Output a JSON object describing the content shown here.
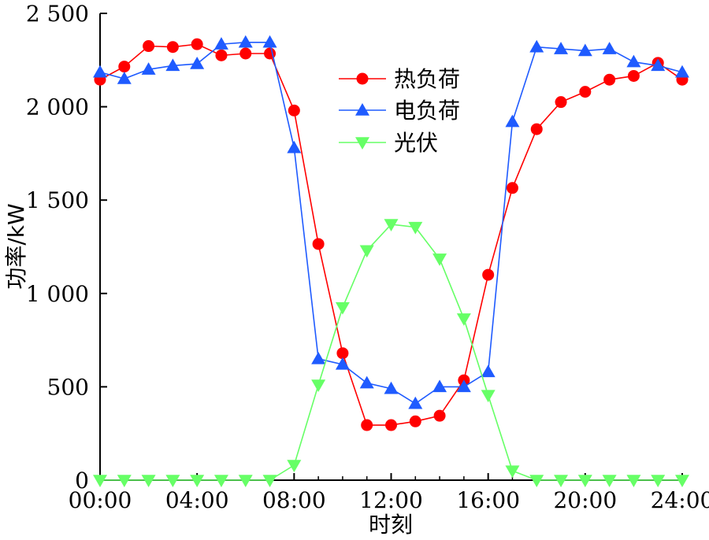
{
  "chart_data": {
    "type": "line",
    "xlabel": "时刻",
    "ylabel": "功率/kW",
    "x_tick_labels": [
      "00:00",
      "04:00",
      "08:00",
      "12:00",
      "16:00",
      "20:00",
      "24:00"
    ],
    "y_tick_labels": [
      "0",
      "500",
      "1 000",
      "1 500",
      "2 000",
      "2 500"
    ],
    "xlim": [
      0,
      24
    ],
    "ylim": [
      0,
      2500
    ],
    "grid": false,
    "legend_position": "top-center",
    "x": [
      0,
      1,
      2,
      3,
      4,
      5,
      6,
      7,
      8,
      9,
      10,
      11,
      12,
      13,
      14,
      15,
      16,
      17,
      18,
      19,
      20,
      21,
      22,
      23,
      24
    ],
    "series": [
      {
        "name": "热负荷",
        "marker": "circle",
        "color": "#ff0000",
        "values": [
          2145,
          2215,
          2325,
          2320,
          2335,
          2275,
          2285,
          2285,
          1980,
          1265,
          680,
          295,
          295,
          315,
          345,
          535,
          1100,
          1565,
          1880,
          2025,
          2080,
          2145,
          2165,
          2235,
          2145
        ]
      },
      {
        "name": "电负荷",
        "marker": "triangle-up",
        "color": "#1f5bff",
        "values": [
          2185,
          2150,
          2200,
          2220,
          2230,
          2335,
          2345,
          2345,
          1780,
          650,
          620,
          520,
          490,
          410,
          500,
          500,
          580,
          1920,
          2320,
          2310,
          2300,
          2310,
          2240,
          2220,
          2185
        ]
      },
      {
        "name": "光伏",
        "marker": "triangle-down",
        "color": "#66ff66",
        "values": [
          0,
          0,
          0,
          0,
          0,
          0,
          0,
          0,
          80,
          510,
          925,
          1230,
          1370,
          1355,
          1185,
          865,
          455,
          50,
          0,
          0,
          0,
          0,
          0,
          0,
          0
        ]
      }
    ]
  }
}
